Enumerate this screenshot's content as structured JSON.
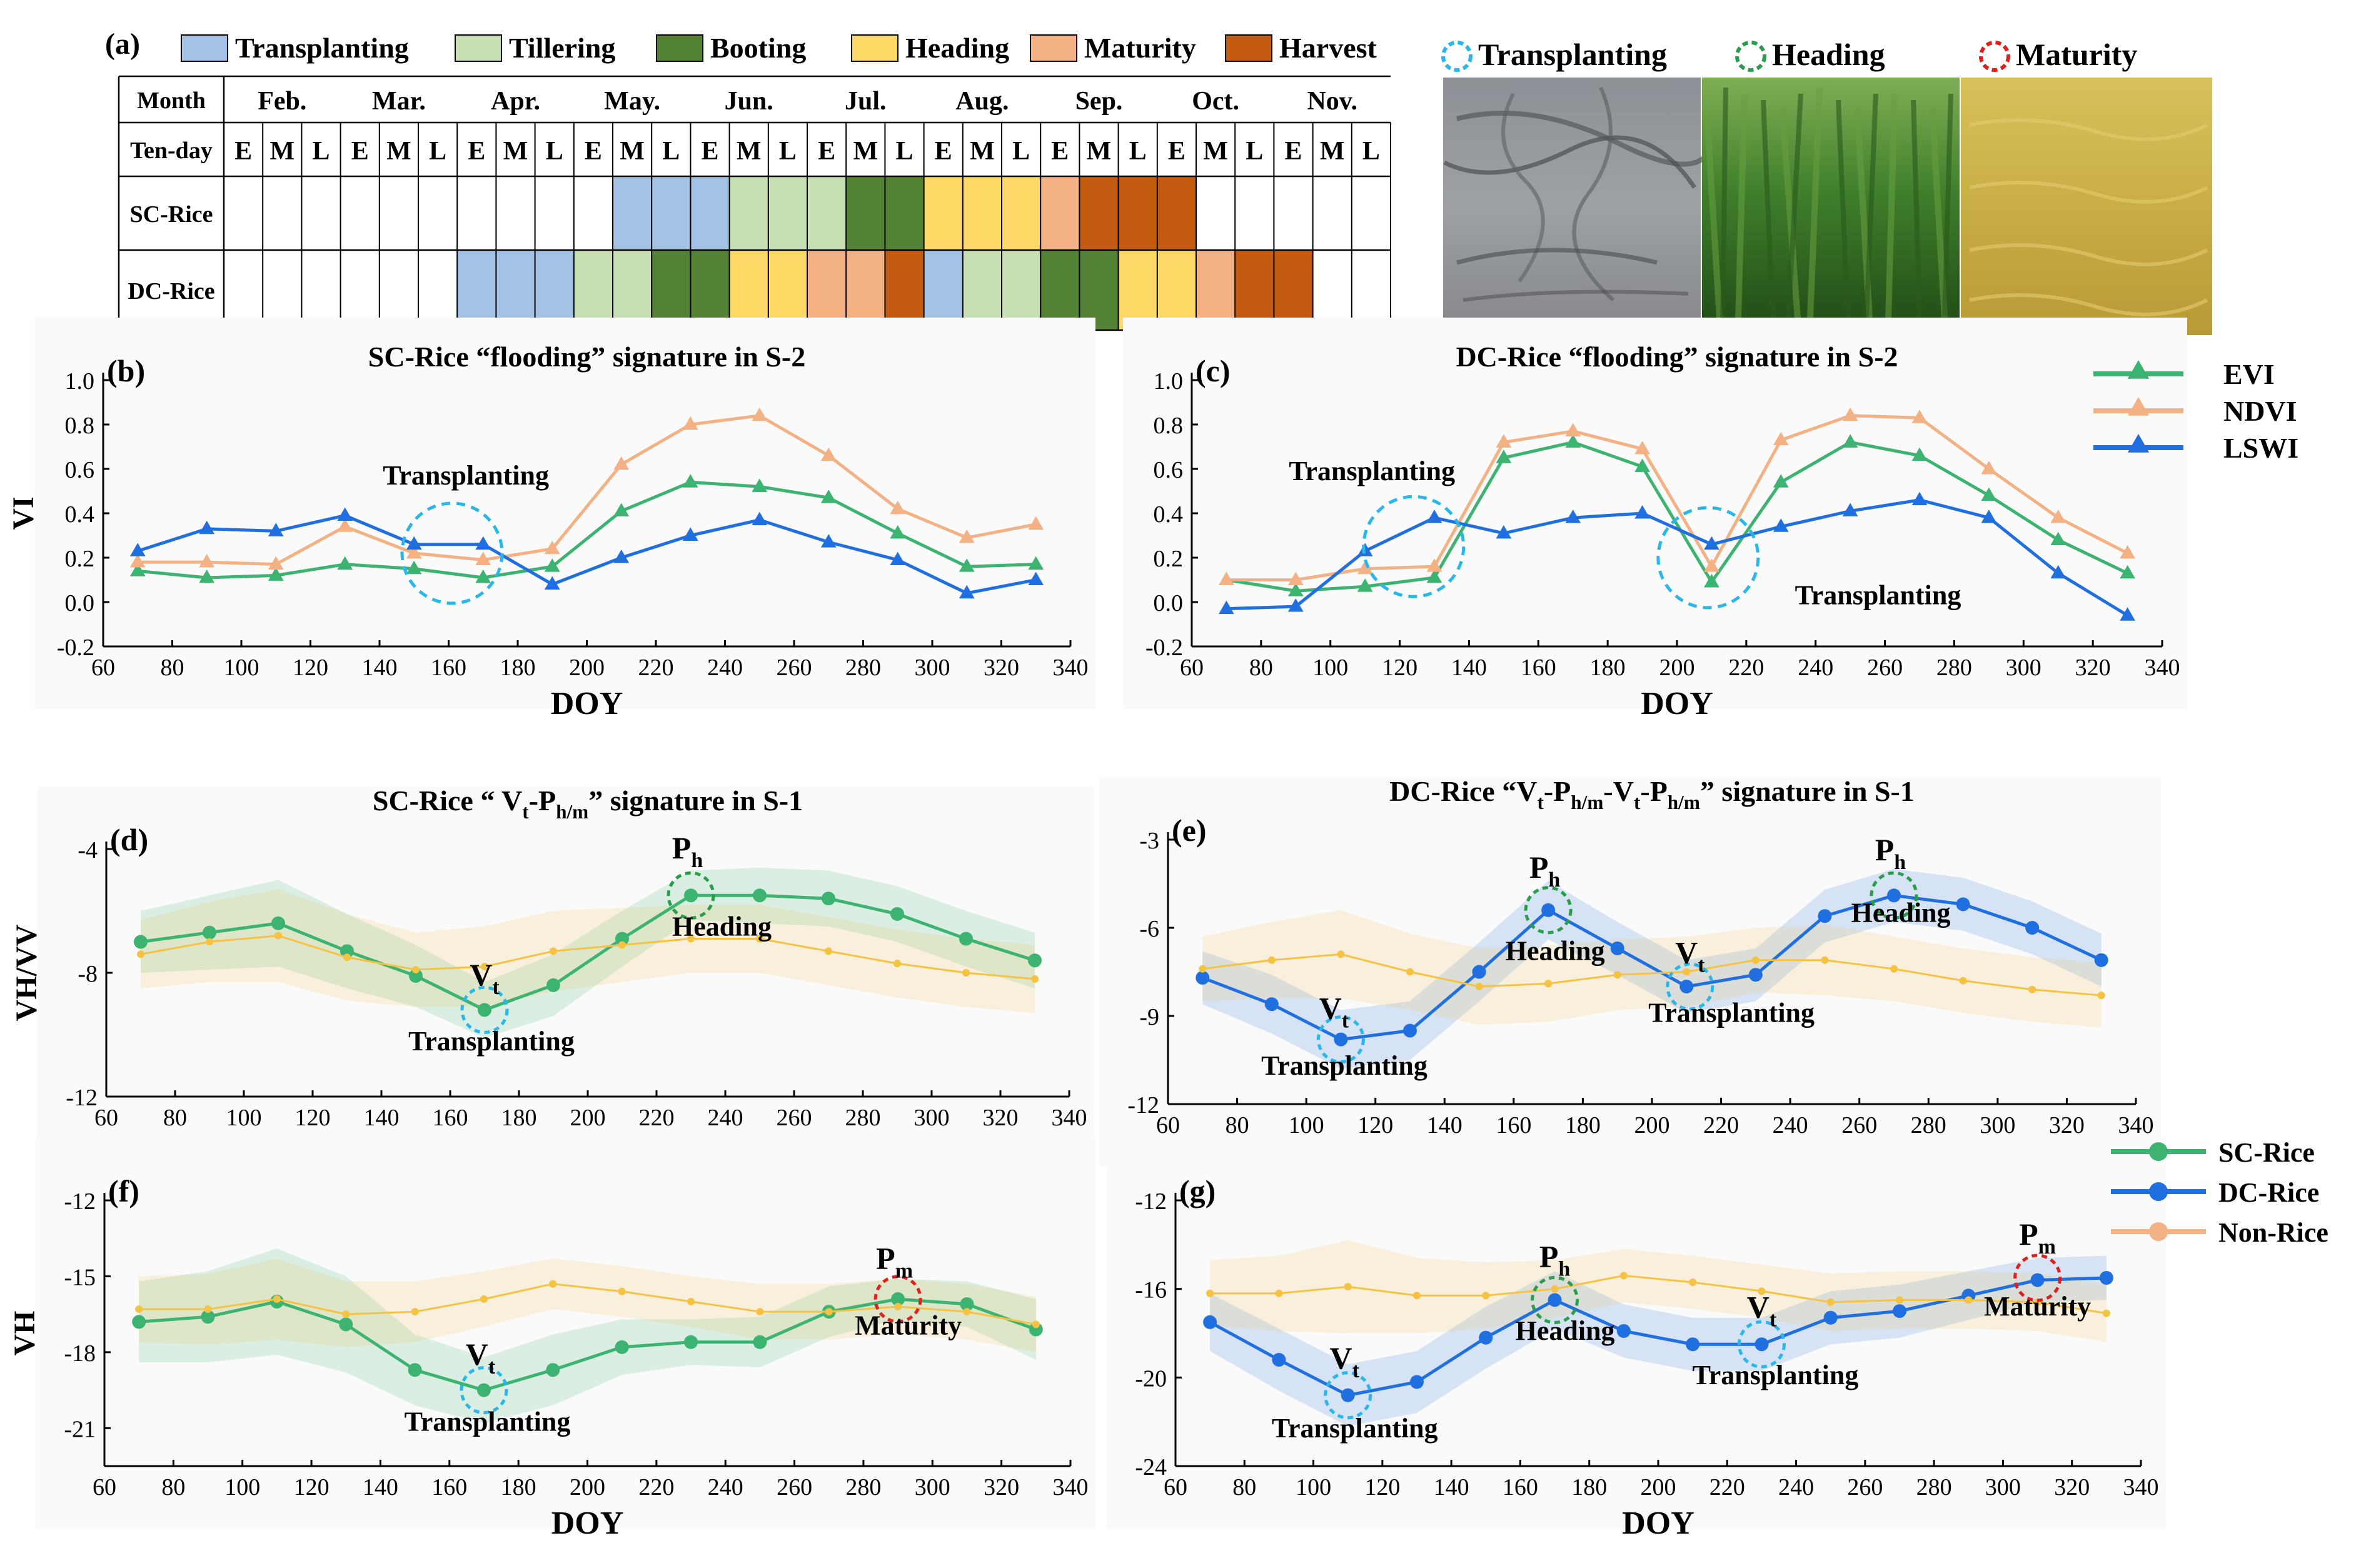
{
  "colors": {
    "transplanting": "#a4c2e6",
    "tillering": "#c6e0b4",
    "booting": "#548235",
    "heading": "#ffd966",
    "maturity": "#f4b183",
    "harvest": "#c55a11",
    "evi": "#3cb371",
    "ndvi": "#f4b183",
    "lswi": "#1f6fe0",
    "sc_rice": "#3cb371",
    "dc_rice": "#1f6fe0",
    "non_rice": "#f5c242",
    "circle_transplanting": "#29b6e8",
    "circle_heading": "#2a9d4a",
    "circle_maturity": "#e0201b"
  },
  "panel_a": {
    "label": "(a)",
    "legend": [
      {
        "label": "Transplanting",
        "color_key": "transplanting"
      },
      {
        "label": "Tillering",
        "color_key": "tillering"
      },
      {
        "label": "Booting",
        "color_key": "booting"
      },
      {
        "label": "Heading",
        "color_key": "heading"
      },
      {
        "label": "Maturity",
        "color_key": "maturity"
      },
      {
        "label": "Harvest",
        "color_key": "harvest"
      }
    ],
    "row_headers": {
      "month": "Month",
      "tenday": "Ten-day",
      "sc": "SC-Rice",
      "dc": "DC-Rice"
    },
    "months": [
      "Feb.",
      "Mar.",
      "Apr.",
      "May.",
      "Jun.",
      "Jul.",
      "Aug.",
      "Sep.",
      "Oct.",
      "Nov."
    ],
    "tenday": [
      "E",
      "M",
      "L"
    ],
    "sc_rice_stages": [
      "",
      "",
      "",
      "",
      "",
      "",
      "",
      "",
      "",
      "",
      "transplanting",
      "transplanting",
      "transplanting",
      "tillering",
      "tillering",
      "tillering",
      "booting",
      "booting",
      "heading",
      "heading",
      "heading",
      "maturity",
      "harvest",
      "harvest",
      "harvest",
      "",
      "",
      "",
      "",
      ""
    ],
    "dc_rice_stages": [
      "",
      "",
      "",
      "",
      "",
      "",
      "transplanting",
      "transplanting",
      "transplanting",
      "tillering",
      "tillering",
      "booting",
      "booting",
      "heading",
      "heading",
      "maturity",
      "maturity",
      "harvest",
      "transplanting",
      "tillering",
      "tillering",
      "booting",
      "booting",
      "heading",
      "heading",
      "maturity",
      "harvest",
      "harvest",
      "",
      ""
    ]
  },
  "photos_legend": [
    {
      "label": "Transplanting",
      "color_key": "circle_transplanting"
    },
    {
      "label": "Heading",
      "color_key": "circle_heading"
    },
    {
      "label": "Maturity",
      "color_key": "circle_maturity"
    }
  ],
  "vi_legend": [
    {
      "label": "EVI",
      "color_key": "evi"
    },
    {
      "label": "NDVI",
      "color_key": "ndvi"
    },
    {
      "label": "LSWI",
      "color_key": "lswi"
    }
  ],
  "rice_legend": [
    {
      "label": "SC-Rice",
      "color_key": "sc_rice"
    },
    {
      "label": "DC-Rice",
      "color_key": "dc_rice"
    },
    {
      "label": "Non-Rice",
      "color_key": "non_rice"
    }
  ],
  "chart_data": [
    {
      "id": "b",
      "label": "(b)",
      "type": "line",
      "title": "SC-Rice “flooding” signature in S-2",
      "xlabel": "DOY",
      "ylabel": "VI",
      "xlim": [
        60,
        340
      ],
      "ylim": [
        -0.2,
        1.0
      ],
      "xticks": [
        60,
        80,
        100,
        120,
        140,
        160,
        180,
        200,
        220,
        240,
        260,
        280,
        300,
        320,
        340
      ],
      "yticks": [
        -0.2,
        0.0,
        0.2,
        0.4,
        0.6,
        0.8,
        1.0
      ],
      "ytick_labels": [
        "-0.2",
        "0.0",
        "0.2",
        "0.4",
        "0.6",
        "0.8",
        "1.0"
      ],
      "marker": "triangle",
      "x": [
        70,
        90,
        110,
        130,
        150,
        170,
        190,
        210,
        230,
        250,
        270,
        290,
        310,
        330
      ],
      "series": [
        {
          "name": "EVI",
          "color_key": "evi",
          "values": [
            0.14,
            0.11,
            0.12,
            0.17,
            0.15,
            0.11,
            0.16,
            0.41,
            0.54,
            0.52,
            0.47,
            0.31,
            0.16,
            0.17
          ]
        },
        {
          "name": "NDVI",
          "color_key": "ndvi",
          "values": [
            0.18,
            0.18,
            0.17,
            0.34,
            0.22,
            0.19,
            0.24,
            0.62,
            0.8,
            0.84,
            0.66,
            0.42,
            0.29,
            0.35
          ]
        },
        {
          "name": "LSWI",
          "color_key": "lswi",
          "values": [
            0.23,
            0.33,
            0.32,
            0.39,
            0.26,
            0.26,
            0.08,
            0.2,
            0.3,
            0.37,
            0.27,
            0.19,
            0.04,
            0.1
          ]
        }
      ],
      "annotations": [
        {
          "x": 161,
          "y": 0.22,
          "circle_key": "circle_transplanting",
          "text": "Transplanting",
          "tx": 165,
          "ty": 0.53
        }
      ]
    },
    {
      "id": "c",
      "label": "(c)",
      "type": "line",
      "title": "DC-Rice “flooding” signature in S-2",
      "xlabel": "DOY",
      "ylabel": "",
      "xlim": [
        60,
        340
      ],
      "ylim": [
        -0.2,
        1.0
      ],
      "xticks": [
        60,
        80,
        100,
        120,
        140,
        160,
        180,
        200,
        220,
        240,
        260,
        280,
        300,
        320,
        340
      ],
      "yticks": [
        -0.2,
        0.0,
        0.2,
        0.4,
        0.6,
        0.8,
        1.0
      ],
      "ytick_labels": [
        "-0.2",
        "0.0",
        "0.2",
        "0.4",
        "0.6",
        "0.8",
        "1.0"
      ],
      "marker": "triangle",
      "x": [
        70,
        90,
        110,
        130,
        150,
        170,
        190,
        210,
        230,
        250,
        270,
        290,
        310,
        330
      ],
      "series": [
        {
          "name": "EVI",
          "color_key": "evi",
          "values": [
            0.1,
            0.05,
            0.07,
            0.11,
            0.65,
            0.72,
            0.61,
            0.09,
            0.54,
            0.72,
            0.66,
            0.48,
            0.28,
            0.13
          ]
        },
        {
          "name": "NDVI",
          "color_key": "ndvi",
          "values": [
            0.1,
            0.1,
            0.15,
            0.16,
            0.72,
            0.77,
            0.69,
            0.16,
            0.73,
            0.84,
            0.83,
            0.6,
            0.38,
            0.22
          ]
        },
        {
          "name": "LSWI",
          "color_key": "lswi",
          "values": [
            -0.03,
            -0.02,
            0.23,
            0.38,
            0.31,
            0.38,
            0.4,
            0.26,
            0.34,
            0.41,
            0.46,
            0.38,
            0.13,
            -0.06
          ]
        }
      ],
      "annotations": [
        {
          "x": 124,
          "y": 0.25,
          "circle_key": "circle_transplanting",
          "text": "Transplanting",
          "tx": 112,
          "ty": 0.55
        },
        {
          "x": 209,
          "y": 0.2,
          "circle_key": "circle_transplanting",
          "text": "Transplanting",
          "tx": 258,
          "ty": -0.01
        }
      ]
    },
    {
      "id": "d",
      "label": "(d)",
      "type": "line",
      "title": "SC-Rice “ V<sub>t</sub>-P<sub>h/m</sub>” signature in S-1",
      "xlabel": "",
      "ylabel": "VH/VV",
      "xlim": [
        60,
        340
      ],
      "ylim": [
        -12,
        -4
      ],
      "xticks": [
        60,
        80,
        100,
        120,
        140,
        160,
        180,
        200,
        220,
        240,
        260,
        280,
        300,
        320,
        340
      ],
      "yticks": [
        -12,
        -8,
        -4
      ],
      "ytick_labels": [
        "-12",
        "-8",
        "-4"
      ],
      "marker": "circle",
      "x": [
        70,
        90,
        110,
        130,
        150,
        170,
        190,
        210,
        230,
        250,
        270,
        290,
        310,
        330
      ],
      "series": [
        {
          "name": "SC-Rice",
          "color_key": "sc_rice",
          "values": [
            -7.0,
            -6.7,
            -6.4,
            -7.3,
            -8.1,
            -9.2,
            -8.4,
            -6.9,
            -5.5,
            -5.5,
            -5.6,
            -6.1,
            -6.9,
            -7.6
          ],
          "band": [
            1.0,
            1.2,
            1.4,
            1.2,
            1.0,
            0.9,
            1.0,
            0.9,
            0.8,
            0.9,
            0.9,
            0.9,
            0.9,
            0.9
          ]
        },
        {
          "name": "Non-Rice",
          "color_key": "non_rice",
          "values": [
            -7.4,
            -7.0,
            -6.8,
            -7.5,
            -7.9,
            -7.8,
            -7.3,
            -7.1,
            -6.9,
            -6.9,
            -7.3,
            -7.7,
            -8.0,
            -8.2
          ],
          "band": [
            1.1,
            1.3,
            1.5,
            1.4,
            1.2,
            1.3,
            1.3,
            1.2,
            1.1,
            1.1,
            1.1,
            1.1,
            1.1,
            1.1
          ]
        }
      ],
      "annotations": [
        {
          "x": 170,
          "y": -9.2,
          "circle_key": "circle_transplanting",
          "sym": "V",
          "sub": "t",
          "sx": 170,
          "sy": -8.4,
          "text": "Transplanting",
          "tx": 172,
          "ty": -10.5
        },
        {
          "x": 230,
          "y": -5.5,
          "circle_key": "circle_heading",
          "sym": "P",
          "sub": "h",
          "sx": 229,
          "sy": -4.3,
          "text": "Heading",
          "tx": 239,
          "ty": -6.8
        }
      ]
    },
    {
      "id": "e",
      "label": "(e)",
      "type": "line",
      "title": "DC-Rice “V<sub>t</sub>-P<sub>h/m</sub>-V<sub>t</sub>-P<sub>h/m</sub>” signature in S-1",
      "xlabel": "",
      "ylabel": "",
      "xlim": [
        60,
        340
      ],
      "ylim": [
        -12,
        -3
      ],
      "xticks": [
        60,
        80,
        100,
        120,
        140,
        160,
        180,
        200,
        220,
        240,
        260,
        280,
        300,
        320,
        340
      ],
      "yticks": [
        -12,
        -9,
        -6,
        -3
      ],
      "ytick_labels": [
        "-12",
        "-9",
        "-6",
        "-3"
      ],
      "marker": "circle",
      "x": [
        70,
        90,
        110,
        130,
        150,
        170,
        190,
        210,
        230,
        250,
        270,
        290,
        310,
        330
      ],
      "series": [
        {
          "name": "DC-Rice",
          "color_key": "dc_rice",
          "values": [
            -7.7,
            -8.6,
            -9.8,
            -9.5,
            -7.5,
            -5.4,
            -6.7,
            -8.0,
            -7.6,
            -5.6,
            -4.9,
            -5.2,
            -6.0,
            -7.1
          ],
          "band": [
            0.9,
            1.0,
            1.0,
            1.0,
            1.0,
            1.0,
            0.9,
            0.9,
            0.9,
            0.9,
            0.9,
            0.9,
            0.9,
            0.9
          ]
        },
        {
          "name": "Non-Rice",
          "color_key": "non_rice",
          "values": [
            -7.4,
            -7.1,
            -6.9,
            -7.5,
            -8.0,
            -7.9,
            -7.6,
            -7.5,
            -7.1,
            -7.1,
            -7.4,
            -7.8,
            -8.1,
            -8.3
          ],
          "band": [
            1.1,
            1.3,
            1.5,
            1.3,
            1.3,
            1.3,
            1.2,
            1.2,
            1.1,
            1.2,
            1.1,
            1.1,
            1.1,
            1.1
          ]
        }
      ],
      "annotations": [
        {
          "x": 110,
          "y": -9.8,
          "circle_key": "circle_transplanting",
          "sym": "V",
          "sub": "t",
          "sx": 108,
          "sy": -9.1,
          "text": "Transplanting",
          "tx": 111,
          "ty": -11.0
        },
        {
          "x": 170,
          "y": -5.4,
          "circle_key": "circle_heading",
          "sym": "P",
          "sub": "h",
          "sx": 169,
          "sy": -4.3,
          "text": "Heading",
          "tx": 172,
          "ty": -7.1
        },
        {
          "x": 211,
          "y": -8.0,
          "circle_key": "circle_transplanting",
          "sym": "V",
          "sub": "t",
          "sx": 211,
          "sy": -7.2,
          "text": "Transplanting",
          "tx": 223,
          "ty": -9.2
        },
        {
          "x": 270,
          "y": -4.9,
          "circle_key": "circle_heading",
          "sym": "P",
          "sub": "h",
          "sx": 269,
          "sy": -3.7,
          "text": "Heading",
          "tx": 272,
          "ty": -5.8
        }
      ]
    },
    {
      "id": "f",
      "label": "(f)",
      "type": "line",
      "title": "",
      "xlabel": "DOY",
      "ylabel": "VH",
      "xlim": [
        60,
        340
      ],
      "ylim": [
        -22.5,
        -12
      ],
      "xticks": [
        60,
        80,
        100,
        120,
        140,
        160,
        180,
        200,
        220,
        240,
        260,
        280,
        300,
        320,
        340
      ],
      "yticks": [
        -21,
        -18,
        -15,
        -12
      ],
      "ytick_labels": [
        "-21",
        "-18",
        "-15",
        "-12"
      ],
      "marker": "circle",
      "x": [
        70,
        90,
        110,
        130,
        150,
        170,
        190,
        210,
        230,
        250,
        270,
        290,
        310,
        330
      ],
      "series": [
        {
          "name": "SC-Rice",
          "color_key": "sc_rice",
          "values": [
            -16.8,
            -16.6,
            -16.0,
            -16.9,
            -18.7,
            -19.5,
            -18.7,
            -17.8,
            -17.6,
            -17.6,
            -16.4,
            -15.9,
            -16.1,
            -17.1
          ],
          "band": [
            1.6,
            1.8,
            2.1,
            1.9,
            1.4,
            1.3,
            1.4,
            1.1,
            0.9,
            1.0,
            1.0,
            0.8,
            0.9,
            1.2
          ]
        },
        {
          "name": "Non-Rice",
          "color_key": "non_rice",
          "values": [
            -16.3,
            -16.3,
            -15.9,
            -16.5,
            -16.4,
            -15.9,
            -15.3,
            -15.6,
            -16.0,
            -16.4,
            -16.4,
            -16.2,
            -16.4,
            -16.9
          ],
          "band": [
            1.3,
            1.4,
            1.6,
            1.3,
            1.2,
            1.1,
            1.0,
            1.0,
            1.0,
            1.1,
            1.1,
            1.1,
            1.1,
            1.1
          ]
        }
      ],
      "annotations": [
        {
          "x": 170,
          "y": -19.5,
          "circle_key": "circle_transplanting",
          "sym": "V",
          "sub": "t",
          "sx": 169,
          "sy": -18.5,
          "text": "Transplanting",
          "tx": 171,
          "ty": -21.1
        },
        {
          "x": 290,
          "y": -15.9,
          "circle_key": "circle_maturity",
          "sym": "P",
          "sub": "m",
          "sx": 289,
          "sy": -14.7,
          "text": "Maturity",
          "tx": 293,
          "ty": -17.3
        }
      ]
    },
    {
      "id": "g",
      "label": "(g)",
      "type": "line",
      "title": "",
      "xlabel": "DOY",
      "ylabel": "",
      "xlim": [
        60,
        340
      ],
      "ylim": [
        -24,
        -12
      ],
      "xticks": [
        60,
        80,
        100,
        120,
        140,
        160,
        180,
        200,
        220,
        240,
        260,
        280,
        300,
        320,
        340
      ],
      "yticks": [
        -24,
        -20,
        -16,
        -12
      ],
      "ytick_labels": [
        "-24",
        "-20",
        "-16",
        "-12"
      ],
      "marker": "circle",
      "x": [
        70,
        90,
        110,
        130,
        150,
        170,
        190,
        210,
        230,
        250,
        270,
        290,
        310,
        330
      ],
      "series": [
        {
          "name": "DC-Rice",
          "color_key": "dc_rice",
          "values": [
            -17.5,
            -19.2,
            -20.8,
            -20.2,
            -18.2,
            -16.5,
            -17.9,
            -18.5,
            -18.5,
            -17.3,
            -17.0,
            -16.3,
            -15.6,
            -15.5
          ],
          "band": [
            1.3,
            1.4,
            1.4,
            1.4,
            1.4,
            1.3,
            1.2,
            1.2,
            1.2,
            1.2,
            1.2,
            1.1,
            1.0,
            1.0
          ]
        },
        {
          "name": "Non-Rice",
          "color_key": "non_rice",
          "values": [
            -16.2,
            -16.2,
            -15.9,
            -16.3,
            -16.3,
            -16.0,
            -15.4,
            -15.7,
            -16.1,
            -16.6,
            -16.5,
            -16.5,
            -16.6,
            -17.1
          ],
          "band": [
            1.5,
            1.7,
            2.1,
            1.7,
            1.5,
            1.3,
            1.2,
            1.2,
            1.2,
            1.3,
            1.3,
            1.3,
            1.3,
            1.3
          ]
        }
      ],
      "annotations": [
        {
          "x": 110,
          "y": -20.8,
          "circle_key": "circle_transplanting",
          "sym": "V",
          "sub": "t",
          "sx": 109,
          "sy": -19.6,
          "text": "Transplanting",
          "tx": 112,
          "ty": -22.7
        },
        {
          "x": 170,
          "y": -16.5,
          "circle_key": "circle_heading",
          "sym": "P",
          "sub": "h",
          "sx": 170,
          "sy": -15.0,
          "text": "Heading",
          "tx": 173,
          "ty": -18.3
        },
        {
          "x": 230,
          "y": -18.5,
          "circle_key": "circle_transplanting",
          "sym": "V",
          "sub": "t",
          "sx": 230,
          "sy": -17.3,
          "text": "Transplanting",
          "tx": 234,
          "ty": -20.3
        },
        {
          "x": 310,
          "y": -15.5,
          "circle_key": "circle_maturity",
          "sym": "P",
          "sub": "m",
          "sx": 310,
          "sy": -14.0,
          "text": "Maturity",
          "tx": 310,
          "ty": -17.2
        }
      ]
    }
  ]
}
